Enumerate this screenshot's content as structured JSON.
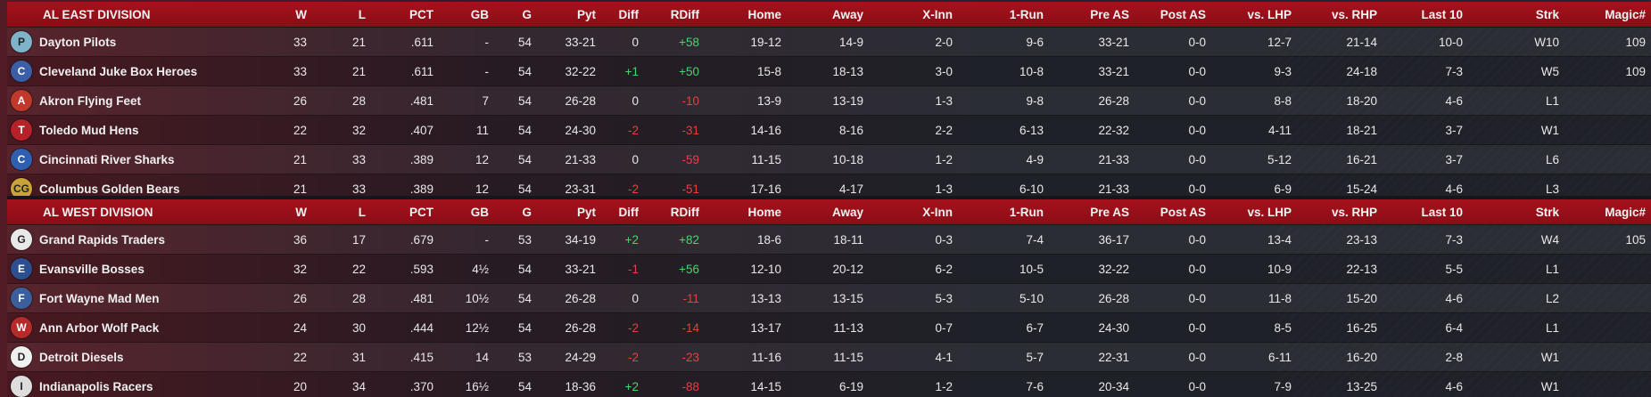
{
  "columns": [
    "W",
    "L",
    "PCT",
    "GB",
    "G",
    "Pyt",
    "Diff",
    "RDiff",
    "Home",
    "Away",
    "X-Inn",
    "1-Run",
    "Pre AS",
    "Post AS",
    "vs. LHP",
    "vs. RHP",
    "Last 10",
    "Strk",
    "Magic#"
  ],
  "colors": {
    "header_red": "#a5121c",
    "positive": "#4ad36a",
    "negative": "#e2433f"
  },
  "divisions": [
    {
      "name": "AL EAST DIVISION",
      "teams": [
        {
          "name": "Dayton Pilots",
          "logo_icon": "dayton-pilots-logo-icon",
          "logo_color": "#7fb3c9",
          "logo_text": "P",
          "W": "33",
          "L": "21",
          "PCT": ".611",
          "GB": "-",
          "G": "54",
          "Pyt": "33-21",
          "Diff": "0",
          "RDiff": "+58",
          "Home": "19-12",
          "Away": "14-9",
          "XInn": "2-0",
          "OneRun": "9-6",
          "PreAS": "33-21",
          "PostAS": "0-0",
          "vsLHP": "12-7",
          "vsRHP": "21-14",
          "Last10": "10-0",
          "Strk": "W10",
          "Magic": "109"
        },
        {
          "name": "Cleveland Juke Box Heroes",
          "logo_icon": "cleveland-juke-box-heroes-logo-icon",
          "logo_color": "#3b5ea8",
          "logo_text": "C",
          "W": "33",
          "L": "21",
          "PCT": ".611",
          "GB": "-",
          "G": "54",
          "Pyt": "32-22",
          "Diff": "+1",
          "RDiff": "+50",
          "Home": "15-8",
          "Away": "18-13",
          "XInn": "3-0",
          "OneRun": "10-8",
          "PreAS": "33-21",
          "PostAS": "0-0",
          "vsLHP": "9-3",
          "vsRHP": "24-18",
          "Last10": "7-3",
          "Strk": "W5",
          "Magic": "109"
        },
        {
          "name": "Akron  Flying Feet",
          "logo_icon": "akron-flying-feet-logo-icon",
          "logo_color": "#c0392b",
          "logo_text": "A",
          "W": "26",
          "L": "28",
          "PCT": ".481",
          "GB": "7",
          "G": "54",
          "Pyt": "26-28",
          "Diff": "0",
          "RDiff": "-10",
          "Home": "13-9",
          "Away": "13-19",
          "XInn": "1-3",
          "OneRun": "9-8",
          "PreAS": "26-28",
          "PostAS": "0-0",
          "vsLHP": "8-8",
          "vsRHP": "18-20",
          "Last10": "4-6",
          "Strk": "L1",
          "Magic": ""
        },
        {
          "name": "Toledo  Mud Hens",
          "logo_icon": "toledo-mud-hens-logo-icon",
          "logo_color": "#b5222a",
          "logo_text": "T",
          "W": "22",
          "L": "32",
          "PCT": ".407",
          "GB": "11",
          "G": "54",
          "Pyt": "24-30",
          "Diff": "-2",
          "RDiff": "-31",
          "Home": "14-16",
          "Away": "8-16",
          "XInn": "2-2",
          "OneRun": "6-13",
          "PreAS": "22-32",
          "PostAS": "0-0",
          "vsLHP": "4-11",
          "vsRHP": "18-21",
          "Last10": "3-7",
          "Strk": "W1",
          "Magic": ""
        },
        {
          "name": "Cincinnati River Sharks",
          "logo_icon": "cincinnati-river-sharks-logo-icon",
          "logo_color": "#2f5fb0",
          "logo_text": "C",
          "W": "21",
          "L": "33",
          "PCT": ".389",
          "GB": "12",
          "G": "54",
          "Pyt": "21-33",
          "Diff": "0",
          "RDiff": "-59",
          "Home": "11-15",
          "Away": "10-18",
          "XInn": "1-2",
          "OneRun": "4-9",
          "PreAS": "21-33",
          "PostAS": "0-0",
          "vsLHP": "5-12",
          "vsRHP": "16-21",
          "Last10": "3-7",
          "Strk": "L6",
          "Magic": ""
        },
        {
          "name": "Columbus Golden Bears",
          "logo_icon": "columbus-golden-bears-logo-icon",
          "logo_color": "#c9a23a",
          "logo_text": "CG",
          "W": "21",
          "L": "33",
          "PCT": ".389",
          "GB": "12",
          "G": "54",
          "Pyt": "23-31",
          "Diff": "-2",
          "RDiff": "-51",
          "Home": "17-16",
          "Away": "4-17",
          "XInn": "1-3",
          "OneRun": "6-10",
          "PreAS": "21-33",
          "PostAS": "0-0",
          "vsLHP": "6-9",
          "vsRHP": "15-24",
          "Last10": "4-6",
          "Strk": "L3",
          "Magic": ""
        }
      ]
    },
    {
      "name": "AL WEST DIVISION",
      "teams": [
        {
          "name": "Grand Rapids Traders",
          "logo_icon": "grand-rapids-traders-logo-icon",
          "logo_color": "#e8e8e8",
          "logo_text": "G",
          "W": "36",
          "L": "17",
          "PCT": ".679",
          "GB": "-",
          "G": "53",
          "Pyt": "34-19",
          "Diff": "+2",
          "RDiff": "+82",
          "Home": "18-6",
          "Away": "18-11",
          "XInn": "0-3",
          "OneRun": "7-4",
          "PreAS": "36-17",
          "PostAS": "0-0",
          "vsLHP": "13-4",
          "vsRHP": "23-13",
          "Last10": "7-3",
          "Strk": "W4",
          "Magic": "105"
        },
        {
          "name": "Evansville Bosses",
          "logo_icon": "evansville-bosses-logo-icon",
          "logo_color": "#2d4f8f",
          "logo_text": "E",
          "W": "32",
          "L": "22",
          "PCT": ".593",
          "GB": "4½",
          "G": "54",
          "Pyt": "33-21",
          "Diff": "-1",
          "RDiff": "+56",
          "Home": "12-10",
          "Away": "20-12",
          "XInn": "6-2",
          "OneRun": "10-5",
          "PreAS": "32-22",
          "PostAS": "0-0",
          "vsLHP": "10-9",
          "vsRHP": "22-13",
          "Last10": "5-5",
          "Strk": "L1",
          "Magic": ""
        },
        {
          "name": "Fort Wayne Mad Men",
          "logo_icon": "fort-wayne-mad-men-logo-icon",
          "logo_color": "#3a5f9c",
          "logo_text": "F",
          "W": "26",
          "L": "28",
          "PCT": ".481",
          "GB": "10½",
          "G": "54",
          "Pyt": "26-28",
          "Diff": "0",
          "RDiff": "-11",
          "Home": "13-13",
          "Away": "13-15",
          "XInn": "5-3",
          "OneRun": "5-10",
          "PreAS": "26-28",
          "PostAS": "0-0",
          "vsLHP": "11-8",
          "vsRHP": "15-20",
          "Last10": "4-6",
          "Strk": "L2",
          "Magic": ""
        },
        {
          "name": "Ann Arbor Wolf Pack",
          "logo_icon": "ann-arbor-wolf-pack-logo-icon",
          "logo_color": "#b52a2a",
          "logo_text": "W",
          "W": "24",
          "L": "30",
          "PCT": ".444",
          "GB": "12½",
          "G": "54",
          "Pyt": "26-28",
          "Diff": "-2",
          "RDiff": "-14",
          "Home": "13-17",
          "Away": "11-13",
          "XInn": "0-7",
          "OneRun": "6-7",
          "PreAS": "24-30",
          "PostAS": "0-0",
          "vsLHP": "8-5",
          "vsRHP": "16-25",
          "Last10": "6-4",
          "Strk": "L1",
          "Magic": ""
        },
        {
          "name": "Detroit Diesels",
          "logo_icon": "detroit-diesels-logo-icon",
          "logo_color": "#f0f0f0",
          "logo_text": "D",
          "W": "22",
          "L": "31",
          "PCT": ".415",
          "GB": "14",
          "G": "53",
          "Pyt": "24-29",
          "Diff": "-2",
          "RDiff": "-23",
          "Home": "11-16",
          "Away": "11-15",
          "XInn": "4-1",
          "OneRun": "5-7",
          "PreAS": "22-31",
          "PostAS": "0-0",
          "vsLHP": "6-11",
          "vsRHP": "16-20",
          "Last10": "2-8",
          "Strk": "W1",
          "Magic": ""
        },
        {
          "name": "Indianapolis Racers",
          "logo_icon": "indianapolis-racers-logo-icon",
          "logo_color": "#dddddd",
          "logo_text": "I",
          "W": "20",
          "L": "34",
          "PCT": ".370",
          "GB": "16½",
          "G": "54",
          "Pyt": "18-36",
          "Diff": "+2",
          "RDiff": "-88",
          "Home": "14-15",
          "Away": "6-19",
          "XInn": "1-2",
          "OneRun": "7-6",
          "PreAS": "20-34",
          "PostAS": "0-0",
          "vsLHP": "7-9",
          "vsRHP": "13-25",
          "Last10": "4-6",
          "Strk": "W1",
          "Magic": ""
        }
      ]
    }
  ]
}
